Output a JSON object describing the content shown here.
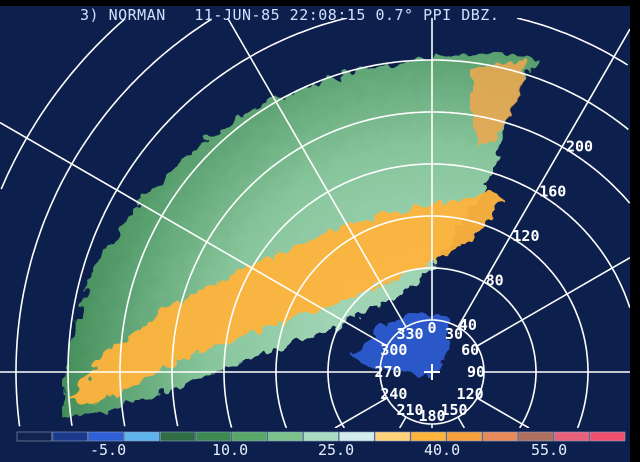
{
  "header": {
    "title": "3) NORMAN   11-JUN-85 22:08:15 0.7° PPI DBZ."
  },
  "range_rings": [
    "40",
    "80",
    "120",
    "160",
    "200"
  ],
  "azimuth_labels": [
    "0",
    "30",
    "60",
    "90",
    "120",
    "150",
    "180",
    "210",
    "240",
    "270",
    "300",
    "330"
  ],
  "color_scale": {
    "labels": [
      "-5.0",
      "10.0",
      "25.0",
      "40.0",
      "55.0"
    ],
    "colors": [
      "#12234f",
      "#1c3a8c",
      "#2e5fd6",
      "#5fb4ec",
      "#2f6e44",
      "#3e8a52",
      "#5aa868",
      "#7cc28c",
      "#a9dcc0",
      "#d5ecef",
      "#ffd27a",
      "#ffb43c",
      "#f5a03c",
      "#e88a5a",
      "#b07060",
      "#e8607a",
      "#f05070"
    ]
  },
  "colors": {
    "background": "#0d1f4c",
    "grid": "#ffffff",
    "echo_weak": "#5aa868",
    "echo_strong": "#ffb43c"
  }
}
